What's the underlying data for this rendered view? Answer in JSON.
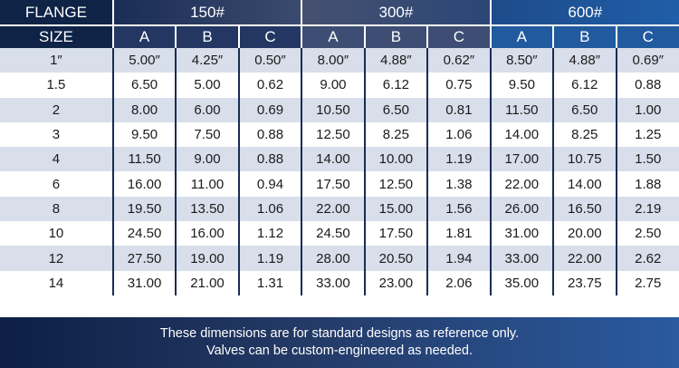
{
  "header": {
    "flange_label": "FLANGE",
    "size_label": "SIZE",
    "classes": [
      "150#",
      "300#",
      "600#"
    ],
    "dims": [
      "A",
      "B",
      "C"
    ]
  },
  "rows": [
    [
      "1″",
      "5.00″",
      "4.25″",
      "0.50″",
      "8.00″",
      "4.88″",
      "0.62″",
      "8.50″",
      "4.88″",
      "0.69″"
    ],
    [
      "1.5",
      "6.50",
      "5.00",
      "0.62",
      "9.00",
      "6.12",
      "0.75",
      "9.50",
      "6.12",
      "0.88"
    ],
    [
      "2",
      "8.00",
      "6.00",
      "0.69",
      "10.50",
      "6.50",
      "0.81",
      "11.50",
      "6.50",
      "1.00"
    ],
    [
      "3",
      "9.50",
      "7.50",
      "0.88",
      "12.50",
      "8.25",
      "1.06",
      "14.00",
      "8.25",
      "1.25"
    ],
    [
      "4",
      "11.50",
      "9.00",
      "0.88",
      "14.00",
      "10.00",
      "1.19",
      "17.00",
      "10.75",
      "1.50"
    ],
    [
      "6",
      "16.00",
      "11.00",
      "0.94",
      "17.50",
      "12.50",
      "1.38",
      "22.00",
      "14.00",
      "1.88"
    ],
    [
      "8",
      "19.50",
      "13.50",
      "1.06",
      "22.00",
      "15.00",
      "1.56",
      "26.00",
      "16.50",
      "2.19"
    ],
    [
      "10",
      "24.50",
      "16.00",
      "1.12",
      "24.50",
      "17.50",
      "1.81",
      "31.00",
      "20.00",
      "2.50"
    ],
    [
      "12",
      "27.50",
      "19.00",
      "1.19",
      "28.00",
      "20.50",
      "1.94",
      "33.00",
      "22.00",
      "2.62"
    ],
    [
      "14",
      "31.00",
      "21.00",
      "1.31",
      "33.00",
      "23.00",
      "2.06",
      "35.00",
      "23.75",
      "2.75"
    ]
  ],
  "footer": {
    "line1": "These dimensions are for standard designs as reference only.",
    "line2": "Valves can be custom-engineered as needed."
  },
  "colors": {
    "header_navy": "#0f2347",
    "row_shade": "#d8deea",
    "footer_blue": "#2a5aa0"
  }
}
